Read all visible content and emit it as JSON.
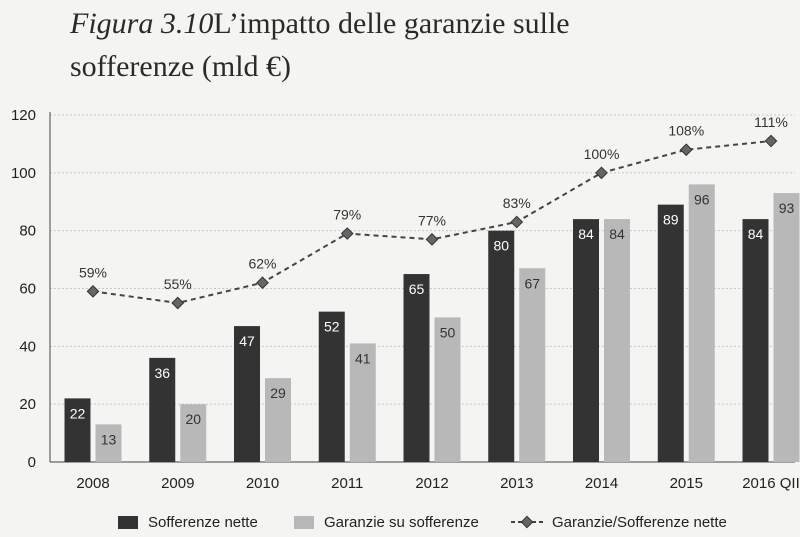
{
  "title": {
    "figure": "Figura 3.10",
    "line1": "L’impatto delle garanzie sulle",
    "line2": "sofferenze (mld €)"
  },
  "chart_data": {
    "type": "bar",
    "categories": [
      "2008",
      "2009",
      "2010",
      "2011",
      "2012",
      "2013",
      "2014",
      "2015",
      "2016 QII"
    ],
    "series": [
      {
        "name": "Sofferenze nette",
        "type": "bar",
        "values": [
          22,
          36,
          47,
          52,
          65,
          80,
          84,
          89,
          84
        ],
        "color": "#333333"
      },
      {
        "name": "Garanzie su sofferenze",
        "type": "bar",
        "values": [
          13,
          20,
          29,
          41,
          50,
          67,
          84,
          96,
          93
        ],
        "color": "#b8b8b8"
      },
      {
        "name": "Garanzie/Sofferenze nette",
        "type": "line",
        "values": [
          59,
          55,
          62,
          79,
          77,
          83,
          100,
          108,
          111
        ],
        "labels": [
          "59%",
          "55%",
          "62%",
          "79%",
          "77%",
          "83%",
          "100%",
          "108%",
          "111%"
        ],
        "color": "#444444"
      }
    ],
    "ylim": [
      0,
      120
    ],
    "yticks": [
      0,
      20,
      40,
      60,
      80,
      100,
      120
    ],
    "grid": true,
    "legend": "bottom"
  }
}
